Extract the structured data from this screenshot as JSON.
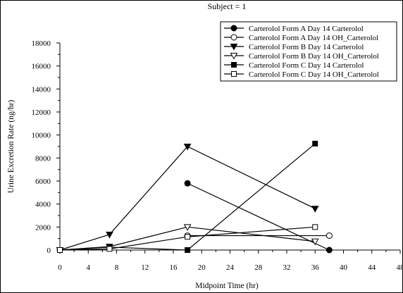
{
  "chart_data": {
    "type": "line",
    "title": "Subject = 1",
    "xlabel": "Midpoint Time (hr)",
    "ylabel": "Urine Excretion Rate (ng/hr)",
    "xlim": [
      0,
      48
    ],
    "ylim": [
      0,
      18000
    ],
    "xticks": [
      "0",
      "4",
      "8",
      "12",
      "16",
      "20",
      "24",
      "28",
      "32",
      "36",
      "40",
      "44",
      "48"
    ],
    "yticks": [
      "0",
      "2000",
      "4000",
      "6000",
      "8000",
      "10000",
      "12000",
      "14000",
      "16000",
      "18000"
    ],
    "grid": false,
    "legend_position": "top-right",
    "series": [
      {
        "name": "Carterolol Form A  Day 14  Carterolol",
        "marker": "filled-circle",
        "x": [
          18,
          38
        ],
        "y": [
          5800,
          0
        ]
      },
      {
        "name": "Carterolol Form A  Day 14  OH_Carterolol",
        "marker": "open-circle",
        "x": [
          18,
          38
        ],
        "y": [
          1250,
          1250
        ]
      },
      {
        "name": "Carterolol Form B  Day 14  Carterolol",
        "marker": "filled-triangle-down",
        "x": [
          0,
          7,
          18,
          36
        ],
        "y": [
          0,
          1350,
          9000,
          3600
        ]
      },
      {
        "name": "Carterolol Form B  Day 14  OH_Carterolol",
        "marker": "open-triangle-down",
        "x": [
          0,
          7,
          18,
          36
        ],
        "y": [
          0,
          300,
          2000,
          750
        ]
      },
      {
        "name": "Carterolol Form C  Day 14  Carterolol",
        "marker": "filled-square",
        "x": [
          0,
          7,
          18,
          36
        ],
        "y": [
          0,
          250,
          0,
          9250
        ]
      },
      {
        "name": "Carterolol Form C  Day 14  OH_Carterolol",
        "marker": "open-square",
        "x": [
          0,
          7,
          18,
          36
        ],
        "y": [
          0,
          100,
          1150,
          2000
        ]
      }
    ]
  }
}
